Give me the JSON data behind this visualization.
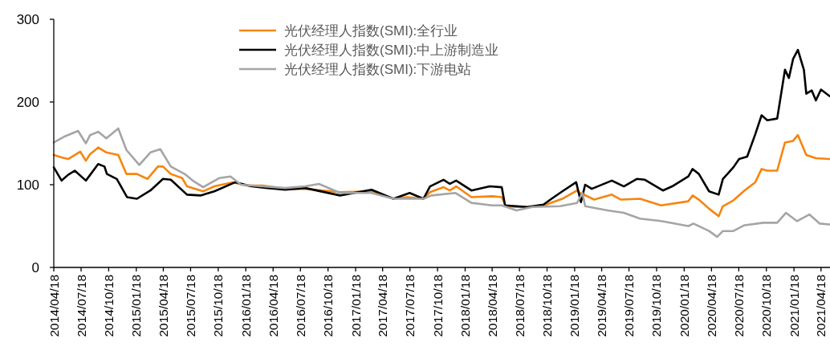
{
  "chart_data": {
    "type": "line",
    "legend": "top",
    "grid": false,
    "line_style": "solid",
    "marker": "none",
    "xlim": [
      "2014-04-18",
      "2021-05-18"
    ],
    "ylim": [
      0,
      300
    ],
    "yticks": [
      0,
      100,
      200,
      300
    ],
    "xticks": [
      {
        "value": "2014-04-18",
        "label": "2014/04/18"
      },
      {
        "value": "2014-07-18",
        "label": "2014/07/18"
      },
      {
        "value": "2014-10-18",
        "label": "2014/10/18"
      },
      {
        "value": "2015-01-18",
        "label": "2015/01/18"
      },
      {
        "value": "2015-04-18",
        "label": "2015/04/18"
      },
      {
        "value": "2015-07-18",
        "label": "2015/07/18"
      },
      {
        "value": "2015-10-18",
        "label": "2015/10/18"
      },
      {
        "value": "2016-01-18",
        "label": "2016/01/18"
      },
      {
        "value": "2016-04-18",
        "label": "2016/04/18"
      },
      {
        "value": "2016-07-18",
        "label": "2016/07/18"
      },
      {
        "value": "2016-10-18",
        "label": "2016/10/18"
      },
      {
        "value": "2017-01-18",
        "label": "2017/01/18"
      },
      {
        "value": "2017-04-18",
        "label": "2017/04/18"
      },
      {
        "value": "2017-07-18",
        "label": "2017/07/18"
      },
      {
        "value": "2017-10-18",
        "label": "2017/10/18"
      },
      {
        "value": "2018-01-18",
        "label": "2018/01/18"
      },
      {
        "value": "2018-04-18",
        "label": "2018/04/18"
      },
      {
        "value": "2018-07-18",
        "label": "2018/07/18"
      },
      {
        "value": "2018-10-18",
        "label": "2018/10/18"
      },
      {
        "value": "2019-01-18",
        "label": "2019/01/18"
      },
      {
        "value": "2019-04-18",
        "label": "2019/04/18"
      },
      {
        "value": "2019-07-18",
        "label": "2019/07/18"
      },
      {
        "value": "2019-10-18",
        "label": "2019/10/18"
      },
      {
        "value": "2020-01-18",
        "label": "2020/01/18"
      },
      {
        "value": "2020-04-18",
        "label": "2020/04/18"
      },
      {
        "value": "2020-07-18",
        "label": "2020/07/18"
      },
      {
        "value": "2020-10-18",
        "label": "2020/10/18"
      },
      {
        "value": "2021-01-18",
        "label": "2021/01/18"
      },
      {
        "value": "2021-04-18",
        "label": "2021/04/18"
      }
    ],
    "series": [
      {
        "name": "光伏经理人指数(SMI):全行业",
        "color": "#f7850f",
        "x": [
          "2014-04-18",
          "2014-05-14",
          "2014-06-05",
          "2014-07-15",
          "2014-08-03",
          "2014-08-17",
          "2014-09-13",
          "2014-10-10",
          "2014-11-19",
          "2014-12-16",
          "2015-01-20",
          "2015-02-24",
          "2015-03-31",
          "2015-04-17",
          "2015-05-13",
          "2015-06-20",
          "2015-07-06",
          "2015-08-29",
          "2015-10-05",
          "2015-12-06",
          "2016-01-21",
          "2016-03-14",
          "2016-05-28",
          "2016-08-03",
          "2016-11-27",
          "2017-03-12",
          "2017-05-24",
          "2017-07-09",
          "2017-09-01",
          "2017-09-23",
          "2017-11-07",
          "2017-11-28",
          "2017-12-19",
          "2018-02-08",
          "2018-04-18",
          "2018-05-20",
          "2018-06-03",
          "2018-07-08",
          "2018-08-14",
          "2018-10-15",
          "2018-12-08",
          "2019-01-26",
          "2019-01-31",
          "2019-03-24",
          "2019-05-22",
          "2019-06-21",
          "2019-08-24",
          "2019-11-02",
          "2020-02-01",
          "2020-02-15",
          "2020-03-07",
          "2020-04-10",
          "2020-05-12",
          "2020-05-26",
          "2020-06-30",
          "2020-08-06",
          "2020-09-11",
          "2020-10-02",
          "2020-10-21",
          "2020-11-23",
          "2020-12-19",
          "2021-01-15",
          "2021-01-31",
          "2021-02-28",
          "2021-04-01",
          "2021-05-17"
        ],
        "values": [
          136,
          133,
          131,
          140,
          129,
          137,
          145,
          139,
          136,
          113,
          113,
          107,
          122,
          122,
          113,
          108,
          98,
          92,
          98,
          103,
          99,
          99,
          95,
          95,
          91,
          92,
          83,
          85,
          83,
          91,
          97,
          93,
          98,
          85,
          86,
          85,
          74,
          73,
          73,
          76,
          83,
          93,
          91,
          82,
          88,
          82,
          83,
          75,
          80,
          87,
          82,
          71,
          62,
          74,
          81,
          93,
          103,
          119,
          117,
          117,
          151,
          153,
          160,
          136,
          132,
          131
        ]
      },
      {
        "name": "光伏经理人指数(SMI):中上游制造业",
        "color": "#000000",
        "x": [
          "2014-04-18",
          "2014-05-14",
          "2014-06-05",
          "2014-06-27",
          "2014-08-03",
          "2014-09-13",
          "2014-10-04",
          "2014-10-12",
          "2014-11-14",
          "2014-12-18",
          "2015-01-20",
          "2015-03-06",
          "2015-04-17",
          "2015-05-13",
          "2015-07-06",
          "2015-08-20",
          "2015-10-05",
          "2015-12-14",
          "2016-02-06",
          "2016-03-30",
          "2016-05-28",
          "2016-08-03",
          "2016-11-27",
          "2017-03-12",
          "2017-05-24",
          "2017-07-17",
          "2017-09-01",
          "2017-09-23",
          "2017-11-07",
          "2017-11-28",
          "2017-12-19",
          "2018-02-08",
          "2018-04-10",
          "2018-05-20",
          "2018-05-31",
          "2018-07-08",
          "2018-08-14",
          "2018-10-06",
          "2018-11-02",
          "2018-12-08",
          "2019-01-23",
          "2019-02-08",
          "2019-02-22",
          "2019-03-16",
          "2019-05-22",
          "2019-07-01",
          "2019-08-13",
          "2019-09-09",
          "2019-11-08",
          "2019-12-09",
          "2020-02-01",
          "2020-02-15",
          "2020-03-07",
          "2020-04-10",
          "2020-05-12",
          "2020-05-26",
          "2020-06-30",
          "2020-07-19",
          "2020-08-15",
          "2020-09-11",
          "2020-10-02",
          "2020-10-21",
          "2020-11-23",
          "2020-12-19",
          "2021-01-01",
          "2021-01-15",
          "2021-01-31",
          "2021-02-20",
          "2021-02-28",
          "2021-03-18",
          "2021-04-01",
          "2021-04-18",
          "2021-05-17"
        ],
        "values": [
          121,
          105,
          112,
          117,
          105,
          125,
          122,
          113,
          107,
          85,
          83,
          93,
          107,
          106,
          88,
          87,
          92,
          103,
          98,
          96,
          94,
          96,
          87,
          94,
          83,
          90,
          83,
          98,
          106,
          101,
          105,
          93,
          98,
          97,
          75,
          74,
          73,
          76,
          83,
          92,
          103,
          79,
          100,
          95,
          105,
          98,
          107,
          106,
          93,
          98,
          110,
          119,
          113,
          92,
          88,
          107,
          121,
          131,
          134,
          161,
          184,
          178,
          180,
          239,
          229,
          252,
          263,
          239,
          210,
          214,
          202,
          215,
          207
        ]
      },
      {
        "name": "光伏经理人指数(SMI):下游电站",
        "color": "#a5a5a5",
        "x": [
          "2014-04-18",
          "2014-05-22",
          "2014-07-08",
          "2014-08-03",
          "2014-08-17",
          "2014-09-13",
          "2014-10-10",
          "2014-11-19",
          "2014-12-16",
          "2015-01-28",
          "2015-03-06",
          "2015-04-08",
          "2015-05-13",
          "2015-06-28",
          "2015-07-25",
          "2015-08-29",
          "2015-10-21",
          "2015-11-28",
          "2016-01-02",
          "2016-03-14",
          "2016-05-28",
          "2016-08-03",
          "2016-09-18",
          "2016-11-27",
          "2017-03-12",
          "2017-05-24",
          "2017-09-01",
          "2017-09-28",
          "2017-12-17",
          "2018-02-08",
          "2018-04-18",
          "2018-05-20",
          "2018-07-08",
          "2018-08-30",
          "2018-11-30",
          "2019-01-26",
          "2019-02-13",
          "2019-02-22",
          "2019-05-08",
          "2019-07-01",
          "2019-08-24",
          "2019-11-02",
          "2020-02-01",
          "2020-02-18",
          "2020-04-10",
          "2020-05-07",
          "2020-05-26",
          "2020-06-30",
          "2020-08-06",
          "2020-10-08",
          "2020-11-23",
          "2020-12-22",
          "2021-01-28",
          "2021-03-10",
          "2021-04-14",
          "2021-05-17"
        ],
        "values": [
          151,
          158,
          165,
          150,
          160,
          164,
          156,
          168,
          142,
          124,
          139,
          143,
          122,
          113,
          105,
          97,
          108,
          110,
          100,
          98,
          96,
          98,
          101,
          90,
          90,
          83,
          83,
          87,
          90,
          78,
          75,
          75,
          69,
          73,
          74,
          78,
          90,
          74,
          69,
          66,
          59,
          56,
          50,
          53,
          44,
          37,
          44,
          44,
          51,
          54,
          54,
          66,
          56,
          64,
          53,
          52
        ]
      }
    ]
  }
}
